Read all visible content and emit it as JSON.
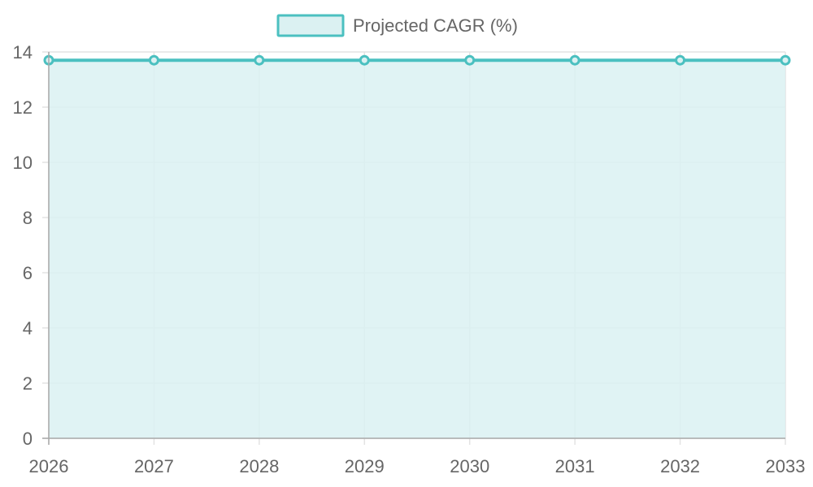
{
  "colors": {
    "series_line": "#4bc0c0",
    "series_fill": "#dbf1f2",
    "grid": "#e3e3e3",
    "axis": "#a9a9a9",
    "tick_text": "#666666",
    "legend_text": "#666666"
  },
  "chart_data": {
    "type": "area",
    "title": "",
    "xlabel": "",
    "ylabel": "",
    "x": [
      "2026",
      "2027",
      "2028",
      "2029",
      "2030",
      "2031",
      "2032",
      "2033"
    ],
    "series": [
      {
        "name": "Projected CAGR (%)",
        "values": [
          13.7,
          13.7,
          13.7,
          13.7,
          13.7,
          13.7,
          13.7,
          13.7
        ]
      }
    ],
    "ylim": [
      0,
      14
    ],
    "y_ticks": [
      "0",
      "2",
      "4",
      "6",
      "8",
      "10",
      "12",
      "14"
    ],
    "grid": true,
    "legend_position": "top-center"
  }
}
